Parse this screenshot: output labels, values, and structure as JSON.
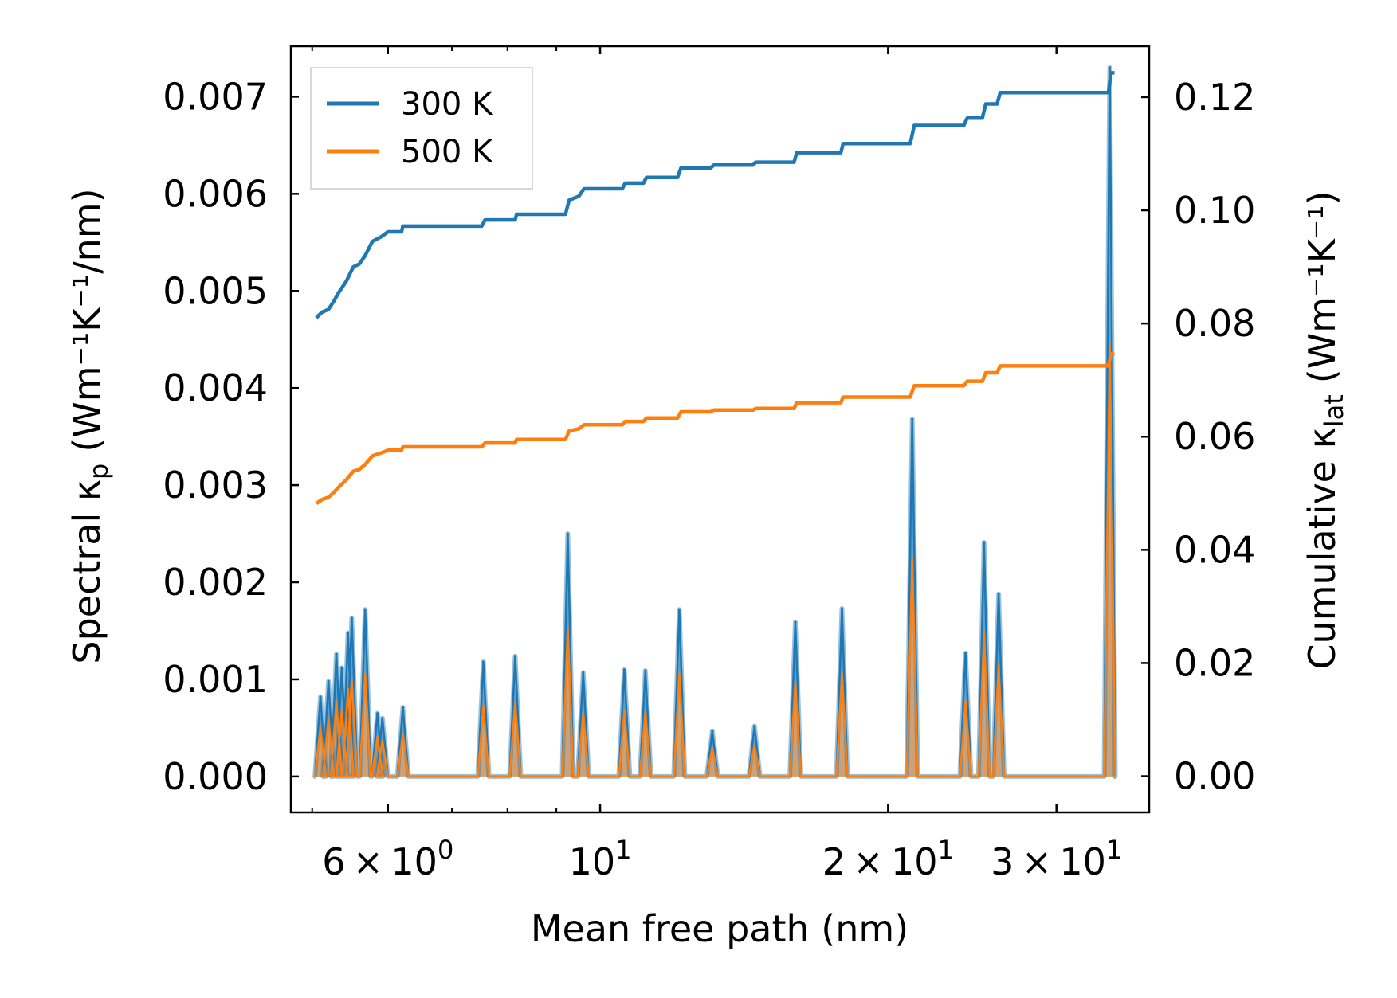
{
  "chart_data": {
    "type": "line",
    "xscale": "log",
    "xlabel": "Mean free path (nm)",
    "ylabel_left": {
      "main": "Spectral κ",
      "sub": "p",
      "units": "(Wm⁻¹K⁻¹/nm)"
    },
    "ylabel_right": {
      "main": "Cumulative κ",
      "sub": "lat",
      "units": "(Wm⁻¹K⁻¹)"
    },
    "xlim": [
      4.75,
      37.5
    ],
    "ylim_left": [
      -0.00037,
      0.00752
    ],
    "ylim_right": [
      -0.0064,
      0.129
    ],
    "x_ticks": [
      {
        "value": 6,
        "mantissa": "6",
        "exp": "0"
      },
      {
        "value": 10,
        "mantissa": "",
        "exp": "1"
      },
      {
        "value": 20,
        "mantissa": "2",
        "exp": "1"
      },
      {
        "value": 30,
        "mantissa": "3",
        "exp": "1"
      }
    ],
    "x_minor_ticks": [
      5,
      7,
      8,
      9
    ],
    "y_left_ticks": [
      "0.000",
      "0.001",
      "0.002",
      "0.003",
      "0.004",
      "0.005",
      "0.006",
      "0.007"
    ],
    "y_right_ticks": [
      "0.00",
      "0.02",
      "0.04",
      "0.06",
      "0.08",
      "0.10",
      "0.12"
    ],
    "legend": {
      "location": "upper-left",
      "entries": [
        "300 K",
        "500 K"
      ]
    },
    "colors": {
      "300 K": "#1f77b4",
      "500 K": "#ff7f0e",
      "fill_300": "#1f77b4",
      "fill_500": "#ff7f0e"
    },
    "spectral_baseline": [
      5.05,
      34.4
    ],
    "spectral_peaks": [
      {
        "x": 5.1,
        "v300": 0.00082,
        "v500": 0.0005
      },
      {
        "x": 5.2,
        "v300": 0.00098,
        "v500": 0.0006
      },
      {
        "x": 5.3,
        "v300": 0.00126,
        "v500": 0.00077
      },
      {
        "x": 5.37,
        "v300": 0.00112,
        "v500": 0.00068
      },
      {
        "x": 5.45,
        "v300": 0.00148,
        "v500": 0.0009
      },
      {
        "x": 5.5,
        "v300": 0.00163,
        "v500": 0.001
      },
      {
        "x": 5.68,
        "v300": 0.00172,
        "v500": 0.00105
      },
      {
        "x": 5.85,
        "v300": 0.00065,
        "v500": 0.0004
      },
      {
        "x": 5.92,
        "v300": 0.0006,
        "v500": 0.00037
      },
      {
        "x": 6.22,
        "v300": 0.00071,
        "v500": 0.00044
      },
      {
        "x": 7.55,
        "v300": 0.00118,
        "v500": 0.00072
      },
      {
        "x": 8.15,
        "v300": 0.00124,
        "v500": 0.00076
      },
      {
        "x": 9.25,
        "v300": 0.0025,
        "v500": 0.00152
      },
      {
        "x": 9.6,
        "v300": 0.00107,
        "v500": 0.00065
      },
      {
        "x": 10.6,
        "v300": 0.0011,
        "v500": 0.00067
      },
      {
        "x": 11.15,
        "v300": 0.00109,
        "v500": 0.00066
      },
      {
        "x": 12.1,
        "v300": 0.00172,
        "v500": 0.00105
      },
      {
        "x": 13.1,
        "v300": 0.00047,
        "v500": 0.00029
      },
      {
        "x": 14.5,
        "v300": 0.00052,
        "v500": 0.00032
      },
      {
        "x": 16.0,
        "v300": 0.00159,
        "v500": 0.00097
      },
      {
        "x": 17.9,
        "v300": 0.00173,
        "v500": 0.00106
      },
      {
        "x": 21.2,
        "v300": 0.00368,
        "v500": 0.00224
      },
      {
        "x": 24.1,
        "v300": 0.00127,
        "v500": 0.00077
      },
      {
        "x": 25.2,
        "v300": 0.00241,
        "v500": 0.00147
      },
      {
        "x": 26.1,
        "v300": 0.00188,
        "v500": 0.00114
      },
      {
        "x": 34.1,
        "v300": 0.0073,
        "v500": 0.00445
      }
    ],
    "cumulative_300K": [
      [
        5.05,
        0.081
      ],
      [
        5.12,
        0.082
      ],
      [
        5.2,
        0.0825
      ],
      [
        5.27,
        0.084
      ],
      [
        5.33,
        0.0855
      ],
      [
        5.43,
        0.0875
      ],
      [
        5.52,
        0.09
      ],
      [
        5.6,
        0.0905
      ],
      [
        5.68,
        0.092
      ],
      [
        5.78,
        0.0945
      ],
      [
        5.9,
        0.0953
      ],
      [
        6.0,
        0.0962
      ],
      [
        6.2,
        0.0962
      ],
      [
        6.22,
        0.0972
      ],
      [
        7.52,
        0.0972
      ],
      [
        7.58,
        0.0983
      ],
      [
        8.15,
        0.0983
      ],
      [
        8.18,
        0.0993
      ],
      [
        9.2,
        0.0993
      ],
      [
        9.28,
        0.1018
      ],
      [
        9.5,
        0.1025
      ],
      [
        9.62,
        0.1038
      ],
      [
        10.55,
        0.1038
      ],
      [
        10.62,
        0.1048
      ],
      [
        11.1,
        0.1048
      ],
      [
        11.18,
        0.1058
      ],
      [
        12.05,
        0.1058
      ],
      [
        12.15,
        0.1075
      ],
      [
        13.05,
        0.1075
      ],
      [
        13.15,
        0.108
      ],
      [
        14.45,
        0.108
      ],
      [
        14.55,
        0.1085
      ],
      [
        15.95,
        0.1085
      ],
      [
        16.05,
        0.1102
      ],
      [
        17.85,
        0.1102
      ],
      [
        17.95,
        0.1118
      ],
      [
        21.1,
        0.1118
      ],
      [
        21.3,
        0.115
      ],
      [
        24.0,
        0.115
      ],
      [
        24.2,
        0.1163
      ],
      [
        25.1,
        0.1163
      ],
      [
        25.3,
        0.1188
      ],
      [
        26.0,
        0.1188
      ],
      [
        26.2,
        0.1208
      ],
      [
        34.0,
        0.1208
      ],
      [
        34.2,
        0.1243
      ],
      [
        34.5,
        0.1243
      ]
    ],
    "cumulative_500K": [
      [
        5.05,
        0.0482
      ],
      [
        5.12,
        0.0489
      ],
      [
        5.2,
        0.0493
      ],
      [
        5.27,
        0.0502
      ],
      [
        5.33,
        0.0511
      ],
      [
        5.43,
        0.0524
      ],
      [
        5.52,
        0.0539
      ],
      [
        5.6,
        0.0542
      ],
      [
        5.68,
        0.0551
      ],
      [
        5.78,
        0.0566
      ],
      [
        5.9,
        0.0571
      ],
      [
        6.0,
        0.0576
      ],
      [
        6.2,
        0.0576
      ],
      [
        6.22,
        0.0582
      ],
      [
        7.52,
        0.0582
      ],
      [
        7.58,
        0.0589
      ],
      [
        8.15,
        0.0589
      ],
      [
        8.18,
        0.0595
      ],
      [
        9.2,
        0.0595
      ],
      [
        9.28,
        0.061
      ],
      [
        9.5,
        0.0614
      ],
      [
        9.62,
        0.0621
      ],
      [
        10.55,
        0.0621
      ],
      [
        10.62,
        0.0627
      ],
      [
        11.1,
        0.0627
      ],
      [
        11.18,
        0.0633
      ],
      [
        12.05,
        0.0633
      ],
      [
        12.15,
        0.0644
      ],
      [
        13.05,
        0.0644
      ],
      [
        13.15,
        0.0647
      ],
      [
        14.45,
        0.0647
      ],
      [
        14.55,
        0.065
      ],
      [
        15.95,
        0.065
      ],
      [
        16.05,
        0.066
      ],
      [
        17.85,
        0.066
      ],
      [
        17.95,
        0.067
      ],
      [
        21.1,
        0.067
      ],
      [
        21.3,
        0.069
      ],
      [
        24.0,
        0.069
      ],
      [
        24.2,
        0.0698
      ],
      [
        25.1,
        0.0698
      ],
      [
        25.3,
        0.0713
      ],
      [
        26.0,
        0.0713
      ],
      [
        26.2,
        0.0725
      ],
      [
        34.0,
        0.0725
      ],
      [
        34.2,
        0.0746
      ],
      [
        34.5,
        0.0746
      ]
    ]
  }
}
